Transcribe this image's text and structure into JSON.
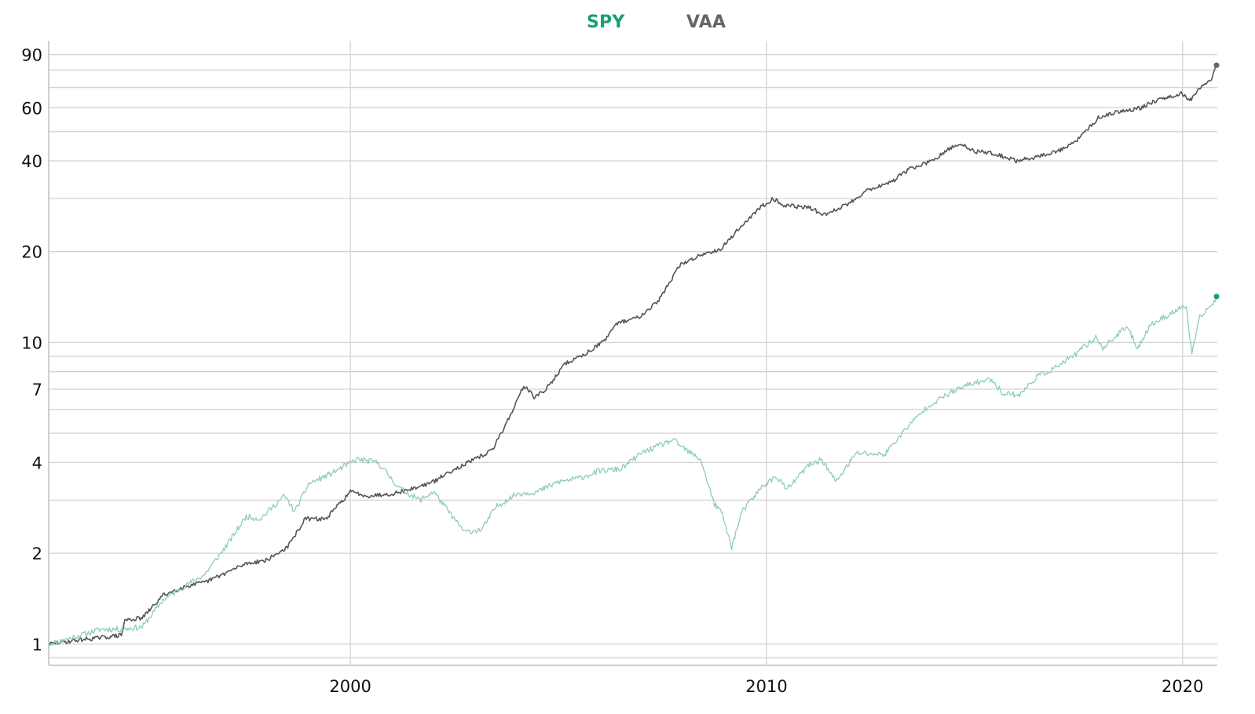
{
  "legend": [
    {
      "name": "SPY",
      "color": "#1a9e77"
    },
    {
      "name": "VAA",
      "color": "#666666"
    }
  ],
  "chart_data": {
    "type": "line",
    "title": "",
    "xlabel": "",
    "ylabel": "",
    "yscale": "log",
    "ylim": [
      0.85,
      100
    ],
    "xlim": [
      "1992-10-01",
      "2020-11-01"
    ],
    "x_ticks": [
      "2000",
      "2010",
      "2020"
    ],
    "y_ticks": [
      1,
      2,
      4,
      7,
      10,
      20,
      40,
      60,
      90
    ],
    "y_minor_gridlines": [
      0.9,
      1,
      2,
      3,
      4,
      5,
      6,
      7,
      8,
      9,
      10,
      20,
      30,
      40,
      50,
      60,
      70,
      80,
      90
    ],
    "grid": true,
    "legend_position": "top-center",
    "series": [
      {
        "name": "SPY",
        "color": "#1a9e77",
        "points": [
          [
            "1992-10-01",
            1.0
          ],
          [
            "1993-06-01",
            1.06
          ],
          [
            "1994-01-01",
            1.12
          ],
          [
            "1994-07-01",
            1.12
          ],
          [
            "1995-01-01",
            1.14
          ],
          [
            "1995-07-01",
            1.4
          ],
          [
            "1996-01-01",
            1.55
          ],
          [
            "1996-07-01",
            1.7
          ],
          [
            "1997-01-01",
            2.1
          ],
          [
            "1997-07-01",
            2.65
          ],
          [
            "1997-11-01",
            2.6
          ],
          [
            "1998-06-01",
            3.1
          ],
          [
            "1998-09-01",
            2.75
          ],
          [
            "1999-01-01",
            3.4
          ],
          [
            "1999-07-01",
            3.65
          ],
          [
            "2000-03-01",
            4.1
          ],
          [
            "2000-09-01",
            4.0
          ],
          [
            "2001-03-01",
            3.3
          ],
          [
            "2001-09-01",
            3.0
          ],
          [
            "2002-01-01",
            3.2
          ],
          [
            "2002-07-01",
            2.6
          ],
          [
            "2002-10-01",
            2.35
          ],
          [
            "2003-03-01",
            2.4
          ],
          [
            "2003-07-01",
            2.85
          ],
          [
            "2004-01-01",
            3.15
          ],
          [
            "2004-07-01",
            3.2
          ],
          [
            "2005-01-01",
            3.45
          ],
          [
            "2005-07-01",
            3.55
          ],
          [
            "2006-01-01",
            3.75
          ],
          [
            "2006-07-01",
            3.8
          ],
          [
            "2007-01-01",
            4.3
          ],
          [
            "2007-10-01",
            4.75
          ],
          [
            "2008-03-01",
            4.3
          ],
          [
            "2008-06-01",
            4.1
          ],
          [
            "2008-10-01",
            2.9
          ],
          [
            "2008-12-01",
            2.75
          ],
          [
            "2009-03-01",
            2.1
          ],
          [
            "2009-06-01",
            2.75
          ],
          [
            "2009-12-01",
            3.35
          ],
          [
            "2010-04-01",
            3.6
          ],
          [
            "2010-07-01",
            3.25
          ],
          [
            "2011-01-01",
            3.9
          ],
          [
            "2011-05-01",
            4.1
          ],
          [
            "2011-09-01",
            3.45
          ],
          [
            "2012-03-01",
            4.3
          ],
          [
            "2012-11-01",
            4.25
          ],
          [
            "2013-06-01",
            5.3
          ],
          [
            "2013-12-01",
            6.2
          ],
          [
            "2014-06-01",
            6.8
          ],
          [
            "2014-12-01",
            7.3
          ],
          [
            "2015-06-01",
            7.55
          ],
          [
            "2015-09-01",
            6.8
          ],
          [
            "2016-02-01",
            6.7
          ],
          [
            "2016-07-01",
            7.7
          ],
          [
            "2016-12-01",
            8.2
          ],
          [
            "2017-06-01",
            9.1
          ],
          [
            "2017-12-01",
            10.4
          ],
          [
            "2018-02-01",
            9.6
          ],
          [
            "2018-09-01",
            11.3
          ],
          [
            "2018-12-01",
            9.6
          ],
          [
            "2019-04-01",
            11.5
          ],
          [
            "2019-12-01",
            12.9
          ],
          [
            "2020-02-01",
            13.2
          ],
          [
            "2020-03-23",
            9.2
          ],
          [
            "2020-06-01",
            12.1
          ],
          [
            "2020-09-01",
            13.2
          ],
          [
            "2020-11-01",
            14.2
          ]
        ]
      },
      {
        "name": "VAA",
        "color": "#666666",
        "points": [
          [
            "1992-10-01",
            1.0
          ],
          [
            "1993-06-01",
            1.03
          ],
          [
            "1994-01-01",
            1.05
          ],
          [
            "1994-07-01",
            1.07
          ],
          [
            "1994-08-01",
            1.2
          ],
          [
            "1995-01-01",
            1.22
          ],
          [
            "1995-07-01",
            1.45
          ],
          [
            "1996-01-01",
            1.55
          ],
          [
            "1996-07-01",
            1.6
          ],
          [
            "1997-01-01",
            1.72
          ],
          [
            "1997-07-01",
            1.85
          ],
          [
            "1998-01-01",
            1.9
          ],
          [
            "1998-07-01",
            2.1
          ],
          [
            "1998-12-01",
            2.6
          ],
          [
            "1999-06-01",
            2.6
          ],
          [
            "2000-01-01",
            3.2
          ],
          [
            "2000-06-01",
            3.1
          ],
          [
            "2001-01-01",
            3.15
          ],
          [
            "2001-06-01",
            3.25
          ],
          [
            "2002-01-01",
            3.45
          ],
          [
            "2002-06-01",
            3.75
          ],
          [
            "2003-01-01",
            4.1
          ],
          [
            "2003-06-01",
            4.4
          ],
          [
            "2003-12-01",
            6.0
          ],
          [
            "2004-03-01",
            7.2
          ],
          [
            "2004-06-01",
            6.6
          ],
          [
            "2004-09-01",
            6.9
          ],
          [
            "2005-03-01",
            8.5
          ],
          [
            "2005-09-01",
            9.2
          ],
          [
            "2006-03-01",
            10.3
          ],
          [
            "2006-06-01",
            11.6
          ],
          [
            "2006-12-01",
            12.1
          ],
          [
            "2007-06-01",
            13.8
          ],
          [
            "2007-12-01",
            18.0
          ],
          [
            "2008-06-01",
            19.5
          ],
          [
            "2008-12-01",
            20.5
          ],
          [
            "2009-06-01",
            24.5
          ],
          [
            "2009-12-01",
            28.5
          ],
          [
            "2010-03-01",
            30.0
          ],
          [
            "2010-06-01",
            28.5
          ],
          [
            "2011-01-01",
            28.0
          ],
          [
            "2011-06-01",
            26.5
          ],
          [
            "2012-01-01",
            29.0
          ],
          [
            "2012-06-01",
            32.0
          ],
          [
            "2013-01-01",
            34.0
          ],
          [
            "2013-06-01",
            37.5
          ],
          [
            "2014-01-01",
            40.0
          ],
          [
            "2014-06-01",
            44.0
          ],
          [
            "2014-09-01",
            45.5
          ],
          [
            "2015-01-01",
            43.0
          ],
          [
            "2015-06-01",
            42.5
          ],
          [
            "2016-01-01",
            40.0
          ],
          [
            "2016-06-01",
            41.0
          ],
          [
            "2017-01-01",
            43.0
          ],
          [
            "2017-06-01",
            46.0
          ],
          [
            "2018-01-01",
            56.0
          ],
          [
            "2018-06-01",
            58.0
          ],
          [
            "2019-01-01",
            60.0
          ],
          [
            "2019-06-01",
            64.0
          ],
          [
            "2020-01-01",
            67.0
          ],
          [
            "2020-03-01",
            63.0
          ],
          [
            "2020-06-01",
            70.0
          ],
          [
            "2020-09-01",
            74.0
          ],
          [
            "2020-11-01",
            83.0
          ]
        ]
      }
    ]
  }
}
